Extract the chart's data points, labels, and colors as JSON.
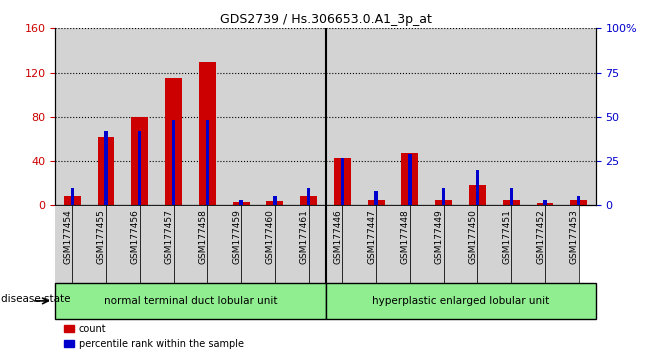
{
  "title": "GDS2739 / Hs.306653.0.A1_3p_at",
  "samples": [
    "GSM177454",
    "GSM177455",
    "GSM177456",
    "GSM177457",
    "GSM177458",
    "GSM177459",
    "GSM177460",
    "GSM177461",
    "GSM177446",
    "GSM177447",
    "GSM177448",
    "GSM177449",
    "GSM177450",
    "GSM177451",
    "GSM177452",
    "GSM177453"
  ],
  "counts": [
    8,
    62,
    80,
    115,
    130,
    3,
    4,
    8,
    43,
    5,
    47,
    5,
    18,
    5,
    2,
    5
  ],
  "percentiles": [
    10,
    42,
    42,
    48,
    48,
    3,
    5,
    10,
    27,
    8,
    29,
    10,
    20,
    10,
    3,
    5
  ],
  "left_ylim": [
    0,
    160
  ],
  "right_ylim": [
    0,
    100
  ],
  "left_yticks": [
    0,
    40,
    80,
    120,
    160
  ],
  "right_yticks": [
    0,
    25,
    50,
    75,
    100
  ],
  "right_yticklabels": [
    "0",
    "25",
    "50",
    "75",
    "100%"
  ],
  "count_color": "#cc0000",
  "percentile_color": "#0000cc",
  "group1_label": "normal terminal duct lobular unit",
  "group2_label": "hyperplastic enlarged lobular unit",
  "group1_count": 8,
  "group2_count": 8,
  "disease_state_label": "disease state",
  "legend_count": "count",
  "legend_percentile": "percentile rank within the sample",
  "group_bg": "#90ee90",
  "tick_bg": "#d3d3d3",
  "plot_bg": "#f0f0f0"
}
